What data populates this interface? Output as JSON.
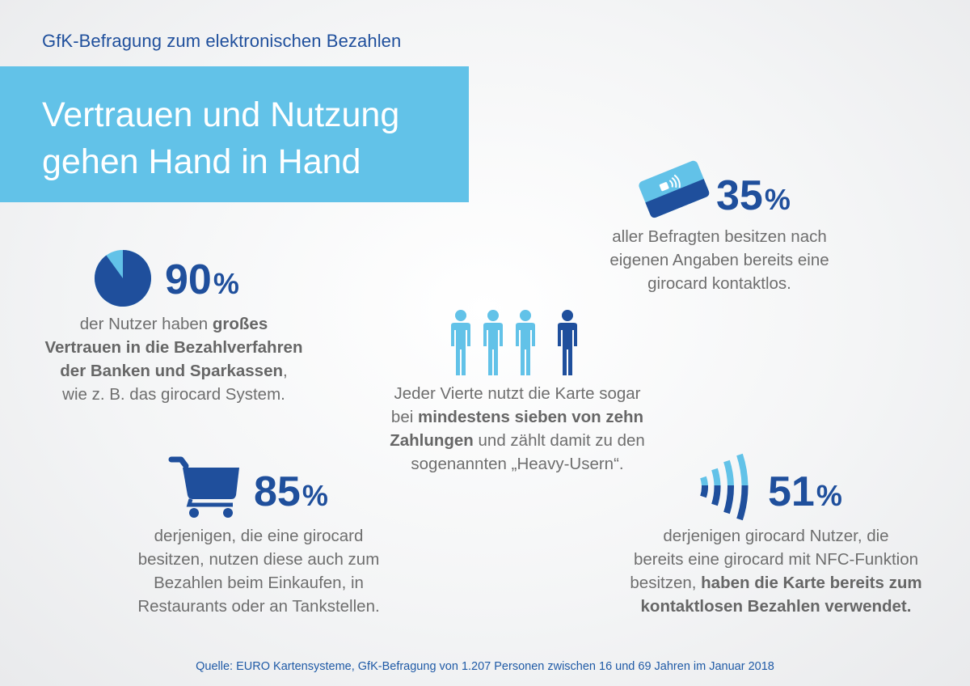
{
  "header": {
    "kicker": "GfK-Befragung zum elektronischen Bezahlen",
    "title_line1": "Vertrauen und Nutzung",
    "title_line2": "gehen Hand in Hand"
  },
  "stat_trust": {
    "value": "90",
    "unit": "%",
    "pie_fraction": 0.9,
    "line1_pre": "der Nutzer haben ",
    "line1_bold": "großes",
    "line2_bold": "Vertrauen in die Bezahlverfahren",
    "line3_bold": "der Banken und Sparkassen",
    "line3_post": ",",
    "line4": "wie z. B. das girocard System."
  },
  "stat_contactless_card": {
    "value": "35",
    "unit": "%",
    "line1": "aller Befragten besitzen nach",
    "line2": "eigenen Angaben bereits eine",
    "line3": "girocard kontaktlos."
  },
  "stat_heavy_users": {
    "people_highlighted": 1,
    "people_total": 4,
    "line1": "Jeder Vierte nutzt die Karte sogar",
    "line2_pre": "bei ",
    "line2_bold": "mindestens sieben von zehn",
    "line3_bold": "Zahlungen",
    "line3_post": " und zählt damit zu den",
    "line4": "sogenannten „Heavy-Usern“."
  },
  "stat_shopping": {
    "value": "85",
    "unit": "%",
    "line1": "derjenigen, die eine girocard",
    "line2": "besitzen, nutzen diese auch zum",
    "line3": "Bezahlen beim Einkaufen, in",
    "line4": "Restaurants oder an Tankstellen."
  },
  "stat_nfc": {
    "value": "51",
    "unit": "%",
    "line1": "derjenigen girocard Nutzer, die",
    "line2": "bereits eine girocard mit NFC-Funktion",
    "line3_pre": "besitzen, ",
    "line3_bold": "haben die Karte bereits zum",
    "line4_bold": "kontaktlosen Bezahlen verwendet."
  },
  "footer": {
    "source": "Quelle: EURO Kartensysteme, GfK-Befragung von 1.207 Personen zwischen 16 und 69 Jahren im Januar 2018"
  },
  "colors": {
    "dark_blue": "#1f4f9c",
    "light_blue": "#62c2e8",
    "text_grey": "#6e6e6e"
  },
  "icons": {
    "trust": "pie-chart-icon",
    "card": "contactless-card-icon",
    "people": "people-icon",
    "cart": "shopping-cart-icon",
    "nfc": "nfc-waves-icon"
  }
}
